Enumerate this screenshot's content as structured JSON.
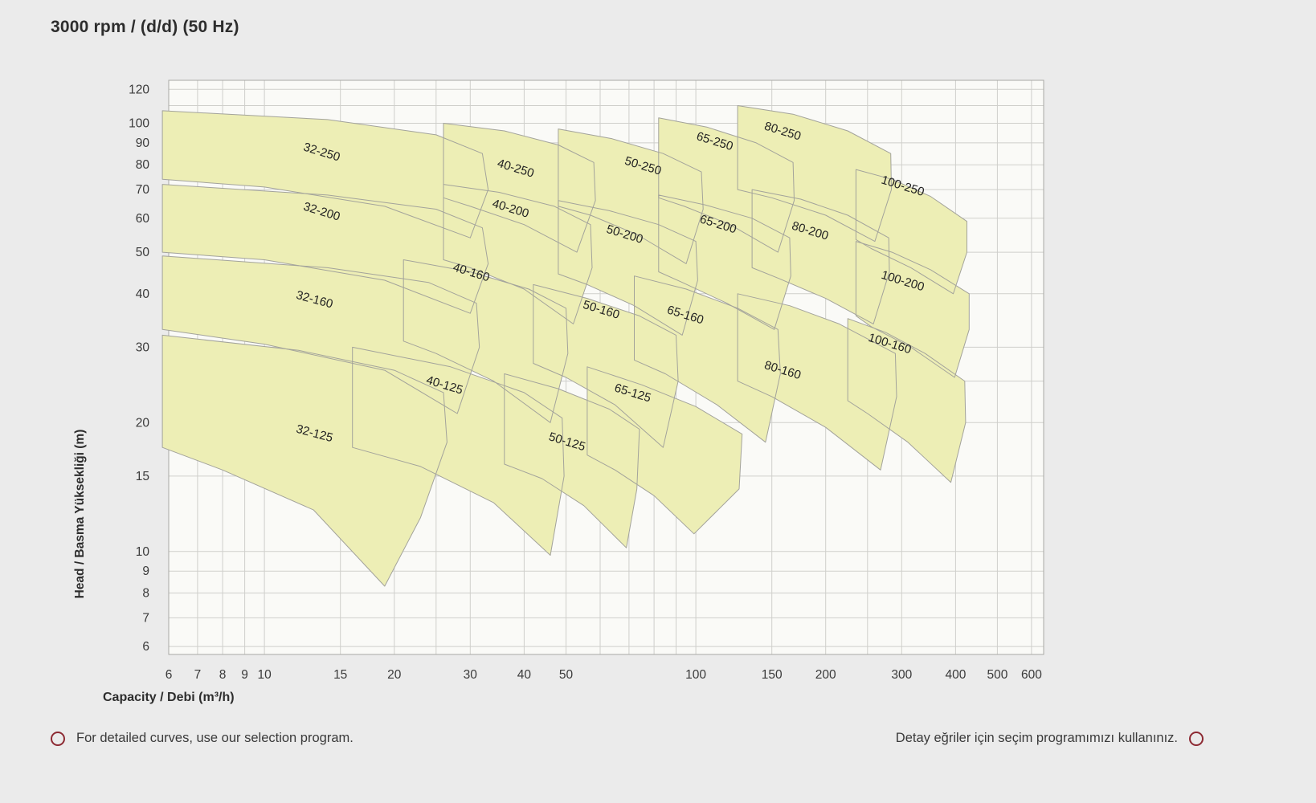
{
  "title": "3000 rpm / (d/d) (50 Hz)",
  "footer": {
    "left_note": "For detailed curves, use our selection program.",
    "right_note": "Detay eğriler için seçim programımızı kullanınız.",
    "bullet_color": "#8d2a33"
  },
  "chart_data": {
    "type": "area",
    "title": "3000 rpm / (d/d) (50 Hz)",
    "xlabel": "Capacity / Debi (m³/h)",
    "ylabel": "Head / Basma Yüksekliği (m)",
    "x_scale": "log",
    "y_scale": "log",
    "xlim": [
      6,
      640
    ],
    "ylim": [
      5.75,
      126
    ],
    "grid": true,
    "x_ticks": [
      6,
      7,
      8,
      9,
      10,
      15,
      20,
      30,
      40,
      50,
      100,
      150,
      200,
      300,
      400,
      500,
      600
    ],
    "y_ticks": [
      120,
      100,
      90,
      80,
      70,
      60,
      50,
      40,
      30,
      20,
      15,
      10,
      9,
      8,
      7,
      6
    ],
    "x_grid": [
      6,
      7,
      8,
      9,
      10,
      15,
      20,
      25,
      30,
      40,
      50,
      60,
      70,
      80,
      90,
      100,
      150,
      200,
      250,
      300,
      400,
      500,
      600
    ],
    "y_grid": [
      6,
      7,
      8,
      9,
      10,
      15,
      20,
      25,
      30,
      40,
      50,
      60,
      70,
      80,
      90,
      100,
      110,
      120
    ],
    "colors": {
      "plot_bg": "#fafaf7",
      "grid": "#cfcfcb",
      "border": "#a8a8a4",
      "region_fill": "#edeeb5",
      "region_stroke": "#a3a39b",
      "label": "#222222",
      "tick": "#3a3a3a"
    },
    "regions": [
      {
        "label": "32-250",
        "at": [
          13.5,
          84
        ],
        "rot": 17,
        "points": [
          [
            5.8,
            107
          ],
          [
            14,
            102
          ],
          [
            25,
            94
          ],
          [
            32,
            85
          ],
          [
            33,
            70
          ],
          [
            30,
            54
          ],
          [
            19,
            64
          ],
          [
            10,
            71
          ],
          [
            5.8,
            74
          ]
        ]
      },
      {
        "label": "40-250",
        "at": [
          38,
          77
        ],
        "rot": 17,
        "points": [
          [
            26,
            100
          ],
          [
            36,
            96
          ],
          [
            48,
            89
          ],
          [
            58,
            81
          ],
          [
            58.5,
            66
          ],
          [
            53,
            50
          ],
          [
            40,
            58
          ],
          [
            30,
            64
          ],
          [
            26,
            67
          ]
        ]
      },
      {
        "label": "50-250",
        "at": [
          75,
          78
        ],
        "rot": 17,
        "points": [
          [
            48,
            97
          ],
          [
            64,
            92
          ],
          [
            84,
            85
          ],
          [
            103,
            77
          ],
          [
            104,
            63
          ],
          [
            95,
            47
          ],
          [
            73,
            55
          ],
          [
            57,
            61
          ],
          [
            48,
            64
          ]
        ]
      },
      {
        "label": "65-250",
        "at": [
          110,
          89
        ],
        "rot": 17,
        "points": [
          [
            82,
            103
          ],
          [
            106,
            98
          ],
          [
            138,
            90
          ],
          [
            168,
            81
          ],
          [
            169,
            66
          ],
          [
            155,
            50
          ],
          [
            120,
            58
          ],
          [
            94,
            64
          ],
          [
            82,
            67
          ]
        ]
      },
      {
        "label": "80-250",
        "at": [
          158,
          94
        ],
        "rot": 17,
        "points": [
          [
            125,
            110
          ],
          [
            168,
            105
          ],
          [
            225,
            96
          ],
          [
            283,
            85
          ],
          [
            284,
            70
          ],
          [
            260,
            53
          ],
          [
            200,
            61
          ],
          [
            150,
            67
          ],
          [
            125,
            70
          ]
        ]
      },
      {
        "label": "100-250",
        "at": [
          300,
          70
        ],
        "rot": 17,
        "points": [
          [
            235,
            78
          ],
          [
            285,
            74
          ],
          [
            350,
            67.5
          ],
          [
            425,
            59
          ],
          [
            425,
            50
          ],
          [
            395,
            40
          ],
          [
            315,
            46
          ],
          [
            255,
            51
          ],
          [
            235,
            53.5
          ]
        ]
      },
      {
        "label": "32-200",
        "at": [
          13.5,
          61
        ],
        "rot": 17,
        "points": [
          [
            5.8,
            72
          ],
          [
            14,
            68
          ],
          [
            25,
            63
          ],
          [
            32,
            57
          ],
          [
            33,
            47
          ],
          [
            30,
            36
          ],
          [
            19,
            43
          ],
          [
            10,
            48
          ],
          [
            5.8,
            50
          ]
        ]
      },
      {
        "label": "40-200",
        "at": [
          37,
          62
        ],
        "rot": 17,
        "points": [
          [
            26,
            72
          ],
          [
            35,
            69
          ],
          [
            47,
            64
          ],
          [
            57,
            58
          ],
          [
            57.5,
            46
          ],
          [
            52,
            34
          ],
          [
            40,
            41
          ],
          [
            30,
            46
          ],
          [
            26,
            48
          ]
        ]
      },
      {
        "label": "50-200",
        "at": [
          68,
          54
        ],
        "rot": 17,
        "points": [
          [
            48,
            66
          ],
          [
            63,
            62.5
          ],
          [
            82,
            58
          ],
          [
            100,
            53
          ],
          [
            101,
            43
          ],
          [
            93,
            32
          ],
          [
            72,
            37.5
          ],
          [
            56,
            42
          ],
          [
            48,
            44.5
          ]
        ]
      },
      {
        "label": "65-200",
        "at": [
          112,
          57
        ],
        "rot": 17,
        "points": [
          [
            82,
            68
          ],
          [
            105,
            64.5
          ],
          [
            135,
            60
          ],
          [
            165,
            54
          ],
          [
            166,
            44
          ],
          [
            152,
            33
          ],
          [
            118,
            38
          ],
          [
            93,
            42.5
          ],
          [
            82,
            45
          ]
        ]
      },
      {
        "label": "80-200",
        "at": [
          183,
          55
        ],
        "rot": 17,
        "points": [
          [
            135,
            70
          ],
          [
            175,
            66.5
          ],
          [
            225,
            61
          ],
          [
            280,
            54
          ],
          [
            281,
            45
          ],
          [
            258,
            34
          ],
          [
            200,
            39
          ],
          [
            155,
            43.5
          ],
          [
            135,
            46
          ]
        ]
      },
      {
        "label": "100-200",
        "at": [
          300,
          42
        ],
        "rot": 17,
        "points": [
          [
            235,
            53
          ],
          [
            285,
            50
          ],
          [
            350,
            45.5
          ],
          [
            430,
            40
          ],
          [
            430,
            33
          ],
          [
            398,
            25.5
          ],
          [
            315,
            30
          ],
          [
            255,
            33.5
          ],
          [
            235,
            35.5
          ]
        ]
      },
      {
        "label": "32-160",
        "at": [
          13,
          38
        ],
        "rot": 15,
        "points": [
          [
            5.8,
            49
          ],
          [
            14,
            46
          ],
          [
            24,
            42.5
          ],
          [
            31,
            38
          ],
          [
            31.5,
            30
          ],
          [
            28,
            21
          ],
          [
            19,
            26.5
          ],
          [
            10,
            30.5
          ],
          [
            5.8,
            33
          ]
        ]
      },
      {
        "label": "40-160",
        "at": [
          30,
          44
        ],
        "rot": 17,
        "points": [
          [
            21,
            48
          ],
          [
            30,
            45
          ],
          [
            41,
            41
          ],
          [
            50,
            37
          ],
          [
            50.5,
            29
          ],
          [
            46,
            20
          ],
          [
            34,
            25
          ],
          [
            25,
            29
          ],
          [
            21,
            31
          ]
        ]
      },
      {
        "label": "50-160",
        "at": [
          60,
          36
        ],
        "rot": 17,
        "points": [
          [
            42,
            42
          ],
          [
            56,
            39
          ],
          [
            74,
            35.5
          ],
          [
            90,
            32
          ],
          [
            91,
            25
          ],
          [
            84,
            17.5
          ],
          [
            65,
            22
          ],
          [
            50,
            25.5
          ],
          [
            42,
            27.5
          ]
        ]
      },
      {
        "label": "65-160",
        "at": [
          94,
          35
        ],
        "rot": 17,
        "points": [
          [
            72,
            44
          ],
          [
            95,
            41
          ],
          [
            125,
            37
          ],
          [
            155,
            33
          ],
          [
            157,
            26
          ],
          [
            145,
            18
          ],
          [
            112,
            22
          ],
          [
            85,
            26
          ],
          [
            72,
            28
          ]
        ]
      },
      {
        "label": "80-160",
        "at": [
          158,
          26
        ],
        "rot": 17,
        "points": [
          [
            125,
            40
          ],
          [
            165,
            37.5
          ],
          [
            215,
            34
          ],
          [
            290,
            29
          ],
          [
            292,
            23
          ],
          [
            268,
            15.5
          ],
          [
            200,
            19.5
          ],
          [
            150,
            23
          ],
          [
            125,
            25
          ]
        ]
      },
      {
        "label": "100-160",
        "at": [
          280,
          30
        ],
        "rot": 17,
        "points": [
          [
            225,
            35
          ],
          [
            275,
            32.5
          ],
          [
            340,
            29
          ],
          [
            420,
            25
          ],
          [
            422,
            20
          ],
          [
            390,
            14.5
          ],
          [
            310,
            18
          ],
          [
            250,
            21
          ],
          [
            225,
            22.5
          ]
        ]
      },
      {
        "label": "32-125",
        "at": [
          13,
          18.5
        ],
        "rot": 15,
        "points": [
          [
            5.8,
            32
          ],
          [
            12,
            29.5
          ],
          [
            20,
            26.5
          ],
          [
            26,
            23.5
          ],
          [
            26.5,
            18
          ],
          [
            23,
            12
          ],
          [
            19,
            8.3
          ],
          [
            13,
            12.5
          ],
          [
            8,
            15.5
          ],
          [
            5.8,
            17.5
          ]
        ]
      },
      {
        "label": "40-125",
        "at": [
          26,
          24
        ],
        "rot": 17,
        "points": [
          [
            16,
            30
          ],
          [
            27,
            27
          ],
          [
            40,
            23.5
          ],
          [
            49,
            20.5
          ],
          [
            49.5,
            15
          ],
          [
            46,
            9.8
          ],
          [
            34,
            13
          ],
          [
            23,
            15.8
          ],
          [
            16,
            17.5
          ]
        ]
      },
      {
        "label": "50-125",
        "at": [
          50,
          17.7
        ],
        "rot": 17,
        "points": [
          [
            36,
            26
          ],
          [
            48,
            24
          ],
          [
            63,
            21.5
          ],
          [
            74,
            19.3
          ],
          [
            73,
            14
          ],
          [
            69,
            10.2
          ],
          [
            55,
            12.8
          ],
          [
            44,
            14.8
          ],
          [
            36,
            16
          ]
        ]
      },
      {
        "label": "65-125",
        "at": [
          71,
          23
        ],
        "rot": 17,
        "points": [
          [
            56,
            27
          ],
          [
            75,
            24.5
          ],
          [
            100,
            21.8
          ],
          [
            128,
            18.8
          ],
          [
            126,
            14
          ],
          [
            99,
            11
          ],
          [
            80,
            13.5
          ],
          [
            65,
            15.5
          ],
          [
            56,
            16.8
          ]
        ]
      }
    ]
  }
}
